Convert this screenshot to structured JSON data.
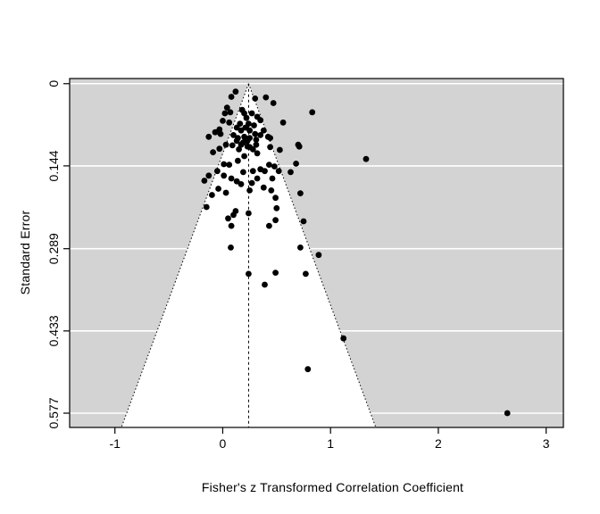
{
  "figure": {
    "kind": "R funnel plot",
    "background": "#ffffff"
  },
  "chart_data": {
    "type": "scatter",
    "subtype": "funnel-plot",
    "title": "",
    "xlabel": "Fisher's z Transformed Correlation Coefficient",
    "ylabel": "Standard Error",
    "x_ticks": [
      -1,
      0,
      1,
      2,
      3
    ],
    "x_tick_labels": [
      "-1",
      "0",
      "1",
      "2",
      "3"
    ],
    "y_ticks": [
      0,
      0.144,
      0.289,
      0.433,
      0.577
    ],
    "y_tick_labels": [
      "0",
      "0.144",
      "0.289",
      "0.433",
      "0.577"
    ],
    "xlim": [
      -1.42,
      3.16
    ],
    "ylim": [
      -0.009,
      0.602
    ],
    "grid": true,
    "legend": null,
    "estimate_line_x": 0.24,
    "funnel_ci_multiplier": 1.96,
    "colors": {
      "panel_background": "#d3d3d3",
      "funnel_region": "#ffffff",
      "gridline": "#ffffff",
      "point": "#000000",
      "axis": "#000000",
      "text": "#000000"
    },
    "point_radius_px": 3.4,
    "points": [
      [
        0.12,
        0.014
      ],
      [
        0.08,
        0.023
      ],
      [
        0.3,
        0.026
      ],
      [
        0.4,
        0.024
      ],
      [
        0.47,
        0.034
      ],
      [
        0.04,
        0.042
      ],
      [
        0.07,
        0.05
      ],
      [
        0.02,
        0.052
      ],
      [
        0.18,
        0.046
      ],
      [
        0.2,
        0.052
      ],
      [
        0.27,
        0.052
      ],
      [
        0.32,
        0.058
      ],
      [
        0.35,
        0.064
      ],
      [
        0.83,
        0.05
      ],
      [
        0.56,
        0.068
      ],
      [
        0.0,
        0.065
      ],
      [
        0.06,
        0.068
      ],
      [
        0.22,
        0.06
      ],
      [
        0.16,
        0.07
      ],
      [
        0.24,
        0.07
      ],
      [
        0.29,
        0.073
      ],
      [
        -0.03,
        0.08
      ],
      [
        -0.07,
        0.085
      ],
      [
        -0.13,
        0.093
      ],
      [
        -0.02,
        0.088
      ],
      [
        0.13,
        0.077
      ],
      [
        0.17,
        0.082
      ],
      [
        0.21,
        0.077
      ],
      [
        0.25,
        0.082
      ],
      [
        0.3,
        0.088
      ],
      [
        0.2,
        0.093
      ],
      [
        0.14,
        0.095
      ],
      [
        0.25,
        0.095
      ],
      [
        0.31,
        0.098
      ],
      [
        0.35,
        0.09
      ],
      [
        0.38,
        0.082
      ],
      [
        0.42,
        0.093
      ],
      [
        0.44,
        0.095
      ],
      [
        0.1,
        0.09
      ],
      [
        0.13,
        0.1
      ],
      [
        0.19,
        0.103
      ],
      [
        0.23,
        0.1
      ],
      [
        0.03,
        0.107
      ],
      [
        0.09,
        0.108
      ],
      [
        0.17,
        0.107
      ],
      [
        0.23,
        0.11
      ],
      [
        0.31,
        0.107
      ],
      [
        0.7,
        0.107
      ],
      [
        0.44,
        0.111
      ],
      [
        0.53,
        0.116
      ],
      [
        0.71,
        0.11
      ],
      [
        1.33,
        0.132
      ],
      [
        -0.09,
        0.12
      ],
      [
        -0.03,
        0.114
      ],
      [
        0.25,
        0.111
      ],
      [
        0.32,
        0.122
      ],
      [
        0.28,
        0.115
      ],
      [
        0.15,
        0.115
      ],
      [
        0.2,
        0.127
      ],
      [
        0.14,
        0.135
      ],
      [
        0.06,
        0.142
      ],
      [
        0.01,
        0.141
      ],
      [
        -0.05,
        0.153
      ],
      [
        -0.13,
        0.161
      ],
      [
        -0.17,
        0.17
      ],
      [
        0.01,
        0.161
      ],
      [
        0.08,
        0.166
      ],
      [
        0.13,
        0.171
      ],
      [
        0.19,
        0.155
      ],
      [
        0.28,
        0.153
      ],
      [
        0.35,
        0.15
      ],
      [
        0.39,
        0.153
      ],
      [
        0.32,
        0.166
      ],
      [
        0.27,
        0.174
      ],
      [
        0.17,
        0.176
      ],
      [
        0.68,
        0.14
      ],
      [
        0.63,
        0.155
      ],
      [
        0.52,
        0.153
      ],
      [
        0.48,
        0.145
      ],
      [
        0.43,
        0.142
      ],
      [
        0.46,
        0.166
      ],
      [
        -0.04,
        0.184
      ],
      [
        0.03,
        0.191
      ],
      [
        -0.1,
        0.195
      ],
      [
        -0.15,
        0.216
      ],
      [
        0.12,
        0.223
      ],
      [
        0.25,
        0.187
      ],
      [
        0.38,
        0.182
      ],
      [
        0.45,
        0.187
      ],
      [
        0.49,
        0.2
      ],
      [
        0.72,
        0.192
      ],
      [
        0.5,
        0.218
      ],
      [
        0.05,
        0.236
      ],
      [
        0.1,
        0.23
      ],
      [
        0.24,
        0.227
      ],
      [
        0.08,
        0.249
      ],
      [
        0.49,
        0.239
      ],
      [
        0.43,
        0.249
      ],
      [
        0.75,
        0.241
      ],
      [
        0.075,
        0.287
      ],
      [
        0.24,
        0.333
      ],
      [
        0.39,
        0.352
      ],
      [
        0.72,
        0.287
      ],
      [
        0.89,
        0.3
      ],
      [
        0.49,
        0.331
      ],
      [
        0.77,
        0.333
      ],
      [
        1.12,
        0.446
      ],
      [
        0.79,
        0.5
      ],
      [
        2.64,
        0.577
      ]
    ]
  }
}
